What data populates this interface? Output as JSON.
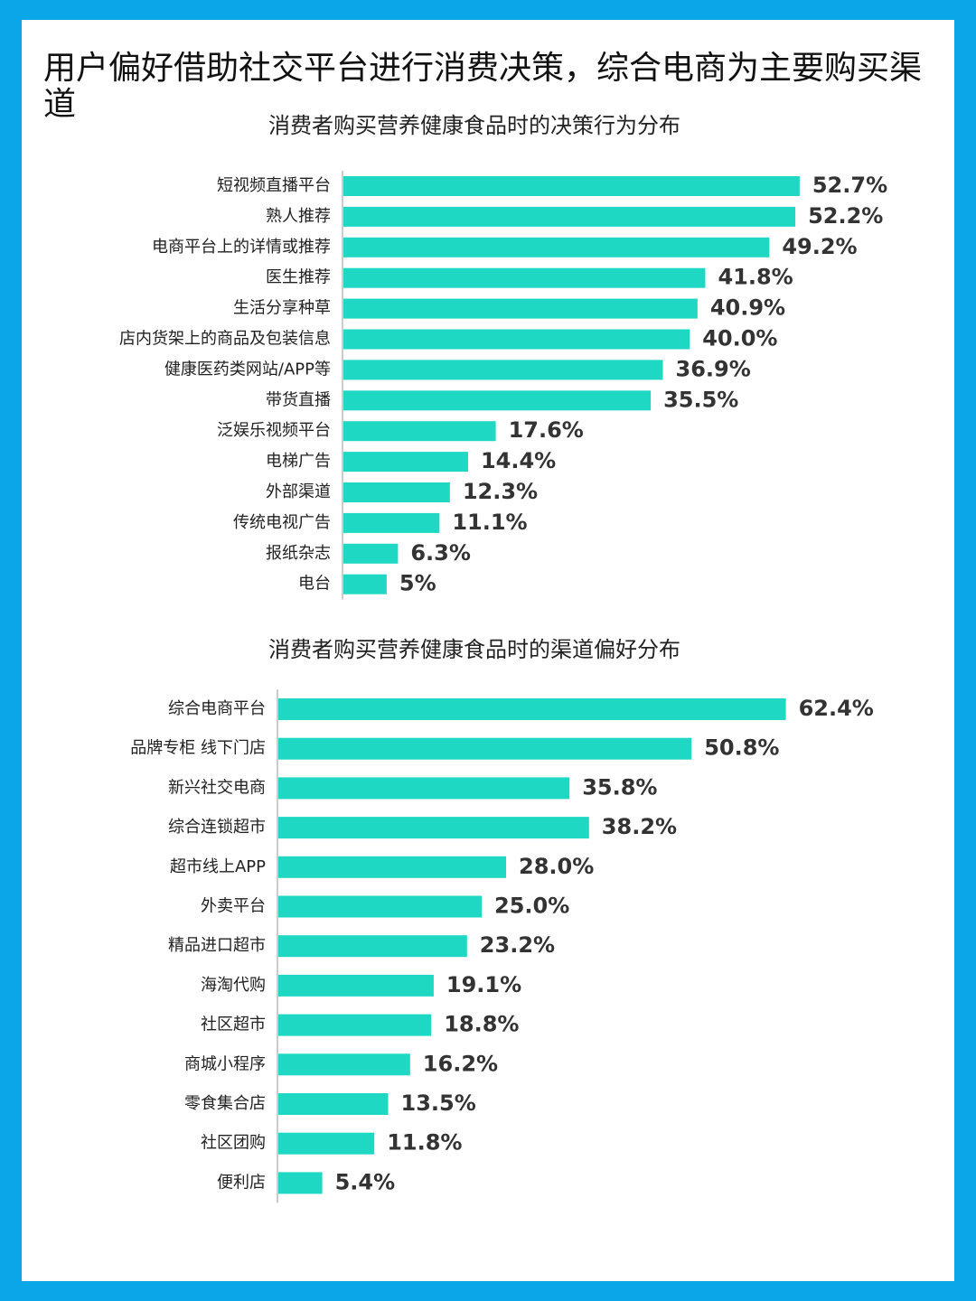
{
  "title": "用户偏好借助社交平台进行消费决策，综合电商为主要购买渠道",
  "chart_data": [
    {
      "type": "bar",
      "orientation": "horizontal",
      "title": "消费者购买营养健康食品时的决策行为分布",
      "color": "#1ed8c4",
      "categories": [
        "短视频直播平台",
        "熟人推荐",
        "电商平台上的详情或推荐",
        "医生推荐",
        "生活分享种草",
        "店内货架上的商品及包装信息",
        "健康医药类网站/APP等",
        "带货直播",
        "泛娱乐视频平台",
        "电梯广告",
        "外部渠道",
        "传统电视广告",
        "报纸杂志",
        "电台"
      ],
      "values": [
        52.7,
        52.2,
        49.2,
        41.8,
        40.9,
        40.0,
        36.9,
        35.5,
        17.6,
        14.4,
        12.3,
        11.1,
        6.3,
        5
      ],
      "value_labels": [
        "52.7%",
        "52.2%",
        "49.2%",
        "41.8%",
        "40.9%",
        "40.0%",
        "36.9%",
        "35.5%",
        "17.6%",
        "14.4%",
        "12.3%",
        "11.1%",
        "6.3%",
        "5%"
      ]
    },
    {
      "type": "bar",
      "orientation": "horizontal",
      "title": "消费者购买营养健康食品时的渠道偏好分布",
      "color": "#1ed8c4",
      "categories": [
        "综合电商平台",
        "品牌专柜 线下门店",
        "新兴社交电商",
        "综合连锁超市",
        "超市线上APP",
        "外卖平台",
        "精品进口超市",
        "海淘代购",
        "社区超市",
        "商城小程序",
        "零食集合店",
        "社区团购",
        "便利店"
      ],
      "values": [
        62.4,
        50.8,
        35.8,
        38.2,
        28.0,
        25.0,
        23.2,
        19.1,
        18.8,
        16.2,
        13.5,
        11.8,
        5.4
      ],
      "value_labels": [
        "62.4%",
        "50.8%",
        "35.8%",
        "38.2%",
        "28.0%",
        "25.0%",
        "23.2%",
        "19.1%",
        "18.8%",
        "16.2%",
        "13.5%",
        "11.8%",
        "5.4%"
      ]
    }
  ]
}
